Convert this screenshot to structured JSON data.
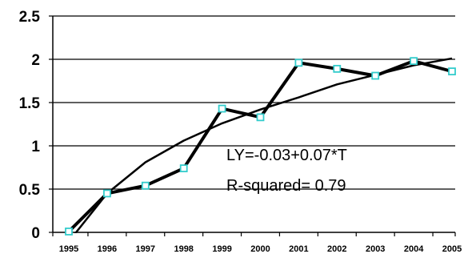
{
  "chart_data": {
    "type": "line",
    "title": "",
    "xlabel": "",
    "ylabel": "",
    "ylim": [
      0,
      2.5
    ],
    "y_ticks": [
      "0",
      "0.5",
      "1",
      "1.5",
      "2",
      "2.5"
    ],
    "x_tick_labels": [
      "1995",
      "1996",
      "1997",
      "1998",
      "1999",
      "2000",
      "2001",
      "2002",
      "2003",
      "2004",
      "2005"
    ],
    "grid": "horizontal",
    "legend": "none",
    "series": [
      {
        "marker": "square",
        "marker_color": "#33cccc",
        "line_color": "#000000",
        "x": [
          1995,
          1996,
          1997,
          1998,
          1999,
          2000,
          2001,
          2002,
          2003,
          2004,
          2005
        ],
        "values": [
          0.01,
          0.45,
          0.54,
          0.74,
          1.43,
          1.33,
          1.96,
          1.89,
          1.81,
          1.98,
          1.86
        ]
      },
      {
        "line_color": "#000000",
        "x": [
          1995.1,
          1996,
          1997,
          1998,
          1999,
          2000,
          2001,
          2002,
          2003,
          2004,
          2005
        ],
        "values": [
          -0.05,
          0.45,
          0.81,
          1.06,
          1.26,
          1.42,
          1.56,
          1.71,
          1.82,
          1.93,
          2.01
        ]
      }
    ],
    "annotations": [
      "LY=-0.03+0.07*T",
      "R-squared= 0.79"
    ]
  }
}
